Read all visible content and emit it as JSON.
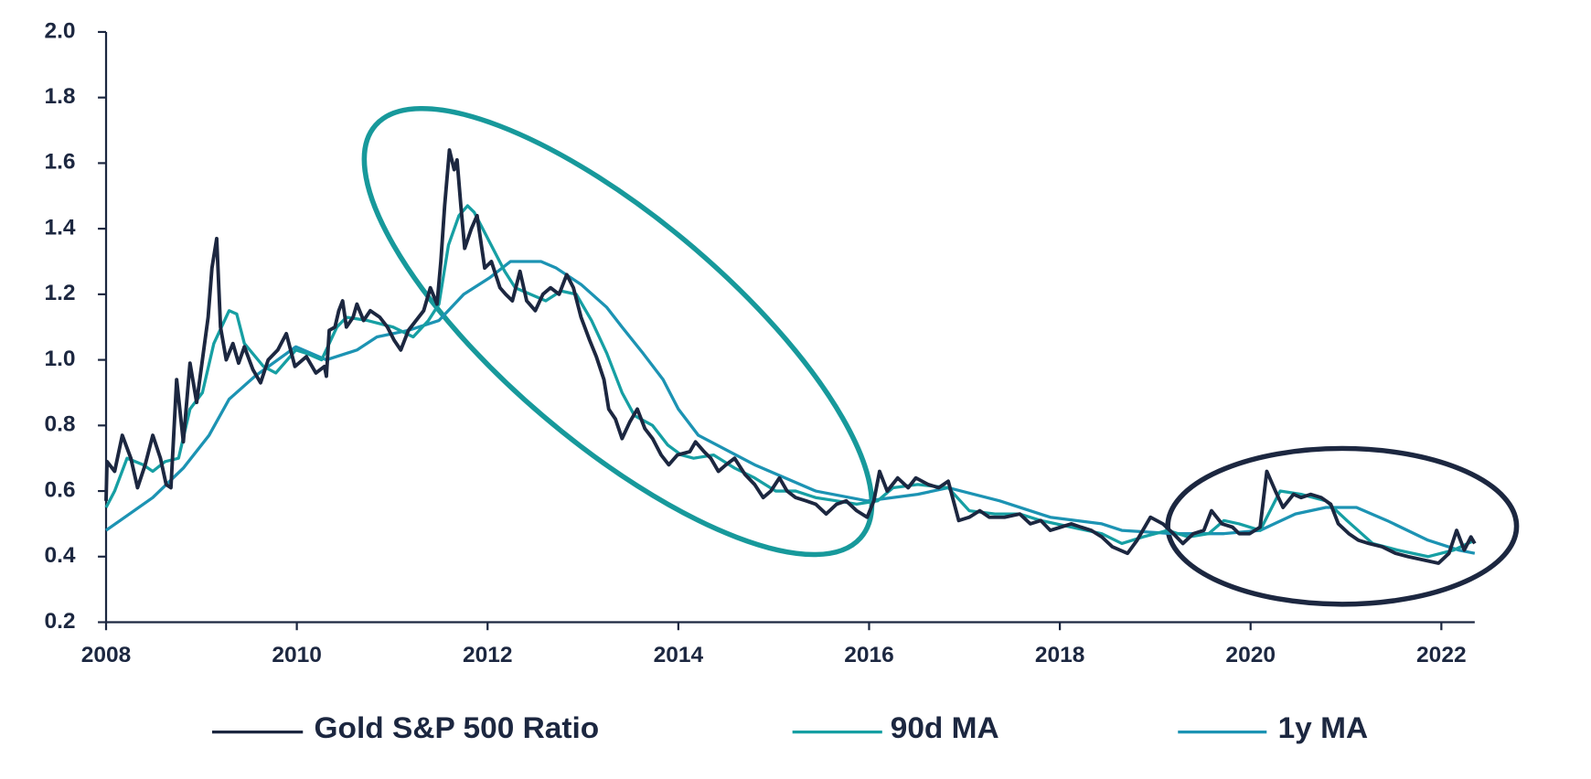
{
  "chart_data": {
    "type": "line",
    "xlim": [
      2008,
      2022.35
    ],
    "xticks": [
      2008,
      2010,
      2012,
      2014,
      2016,
      2018,
      2020,
      2022
    ],
    "ylim": [
      0.2,
      2.0
    ],
    "yticks": [
      0.2,
      0.4,
      0.6,
      0.8,
      {
        "value": 1,
        "label": "1.0"
      },
      1.2,
      1.4,
      1.6,
      1.8,
      {
        "value": 2,
        "label": "2.0"
      }
    ],
    "grid": false,
    "legend": "bottom",
    "series": [
      {
        "name": "Gold S&P 500 Ratio",
        "color": "#1c2740",
        "x": [
          2008,
          2008.01,
          2008.09,
          2008.17,
          2008.26,
          2008.33,
          2008.41,
          2008.49,
          2008.57,
          2008.63,
          2008.68,
          2008.74,
          2008.81,
          2008.88,
          2008.95,
          2009.01,
          2009.07,
          2009.11,
          2009.16,
          2009.2,
          2009.26,
          2009.33,
          2009.39,
          2009.45,
          2009.54,
          2009.62,
          2009.7,
          2009.8,
          2009.89,
          2009.98,
          2010.1,
          2010.2,
          2010.29,
          2010.31,
          2010.34,
          2010.4,
          2010.44,
          2010.48,
          2010.52,
          2010.59,
          2010.63,
          2010.7,
          2010.77,
          2010.87,
          2010.95,
          2011.02,
          2011.09,
          2011.17,
          2011.25,
          2011.33,
          2011.4,
          2011.47,
          2011.51,
          2011.55,
          2011.6,
          2011.65,
          2011.68,
          2011.72,
          2011.76,
          2011.83,
          2011.89,
          2011.97,
          2012.04,
          2012.13,
          2012.19,
          2012.26,
          2012.34,
          2012.41,
          2012.5,
          2012.58,
          2012.66,
          2012.75,
          2012.83,
          2012.9,
          2012.98,
          2013.07,
          2013.14,
          2013.22,
          2013.27,
          2013.34,
          2013.41,
          2013.49,
          2013.57,
          2013.65,
          2013.73,
          2013.82,
          2013.9,
          2013.99,
          2014.12,
          2014.18,
          2014.27,
          2014.34,
          2014.42,
          2014.5,
          2014.59,
          2014.7,
          2014.8,
          2014.89,
          2014.97,
          2015.06,
          2015.14,
          2015.23,
          2015.34,
          2015.44,
          2015.55,
          2015.66,
          2015.76,
          2015.87,
          2015.98,
          2016.05,
          2016.11,
          2016.19,
          2016.3,
          2016.41,
          2016.49,
          2016.62,
          2016.73,
          2016.83,
          2016.94,
          2017.05,
          2017.16,
          2017.26,
          2017.42,
          2017.58,
          2017.69,
          2017.8,
          2017.9,
          2018.01,
          2018.12,
          2018.22,
          2018.33,
          2018.44,
          2018.55,
          2018.71,
          2018.81,
          2018.95,
          2019.08,
          2019.19,
          2019.29,
          2019.4,
          2019.51,
          2019.59,
          2019.7,
          2019.81,
          2019.88,
          2019.99,
          2020.1,
          2020.17,
          2020.26,
          2020.34,
          2020.45,
          2020.53,
          2020.63,
          2020.74,
          2020.84,
          2020.92,
          2021.03,
          2021.13,
          2021.24,
          2021.38,
          2021.52,
          2021.65,
          2021.81,
          2021.97,
          2022.08,
          2022.16,
          2022.24,
          2022.31,
          2022.35
        ],
        "values": [
          0.57,
          0.69,
          0.66,
          0.77,
          0.7,
          0.61,
          0.68,
          0.77,
          0.7,
          0.62,
          0.61,
          0.94,
          0.75,
          0.99,
          0.87,
          1.0,
          1.13,
          1.28,
          1.37,
          1.1,
          1.0,
          1.05,
          0.99,
          1.04,
          0.97,
          0.93,
          1.0,
          1.03,
          1.08,
          0.98,
          1.01,
          0.96,
          0.98,
          0.95,
          1.09,
          1.1,
          1.15,
          1.18,
          1.1,
          1.13,
          1.17,
          1.12,
          1.15,
          1.13,
          1.1,
          1.06,
          1.03,
          1.09,
          1.12,
          1.15,
          1.22,
          1.17,
          1.3,
          1.47,
          1.64,
          1.58,
          1.61,
          1.47,
          1.34,
          1.4,
          1.44,
          1.28,
          1.3,
          1.22,
          1.2,
          1.18,
          1.27,
          1.18,
          1.15,
          1.2,
          1.22,
          1.2,
          1.26,
          1.22,
          1.13,
          1.06,
          1.01,
          0.94,
          0.85,
          0.82,
          0.76,
          0.81,
          0.85,
          0.79,
          0.76,
          0.71,
          0.68,
          0.71,
          0.72,
          0.75,
          0.72,
          0.7,
          0.66,
          0.68,
          0.7,
          0.65,
          0.62,
          0.58,
          0.6,
          0.64,
          0.6,
          0.58,
          0.57,
          0.56,
          0.53,
          0.56,
          0.57,
          0.54,
          0.52,
          0.57,
          0.66,
          0.6,
          0.64,
          0.61,
          0.64,
          0.62,
          0.61,
          0.63,
          0.51,
          0.52,
          0.54,
          0.52,
          0.52,
          0.53,
          0.5,
          0.51,
          0.48,
          0.49,
          0.5,
          0.49,
          0.48,
          0.46,
          0.43,
          0.41,
          0.45,
          0.52,
          0.5,
          0.47,
          0.44,
          0.47,
          0.48,
          0.54,
          0.5,
          0.49,
          0.47,
          0.47,
          0.49,
          0.66,
          0.6,
          0.55,
          0.59,
          0.58,
          0.59,
          0.58,
          0.56,
          0.5,
          0.47,
          0.45,
          0.44,
          0.43,
          0.41,
          0.4,
          0.39,
          0.38,
          0.41,
          0.48,
          0.42,
          0.46,
          0.44
        ]
      },
      {
        "name": "90d MA",
        "color": "#169fa3",
        "x": [
          2008,
          2008.09,
          2008.22,
          2008.39,
          2008.49,
          2008.62,
          2008.76,
          2008.88,
          2009.01,
          2009.13,
          2009.29,
          2009.37,
          2009.45,
          2009.65,
          2009.78,
          2009.99,
          2010.1,
          2010.26,
          2010.42,
          2010.52,
          2010.74,
          2011.01,
          2011.22,
          2011.38,
          2011.49,
          2011.59,
          2011.7,
          2011.79,
          2011.86,
          2012.02,
          2012.18,
          2012.29,
          2012.45,
          2012.61,
          2012.77,
          2012.93,
          2013.09,
          2013.25,
          2013.41,
          2013.54,
          2013.73,
          2013.89,
          2014.03,
          2014.16,
          2014.37,
          2014.59,
          2014.8,
          2015.02,
          2015.23,
          2015.44,
          2015.66,
          2015.87,
          2016.09,
          2016.25,
          2016.51,
          2016.83,
          2017.05,
          2017.32,
          2017.58,
          2017.8,
          2018.12,
          2018.44,
          2018.65,
          2018.87,
          2019.13,
          2019.35,
          2019.56,
          2019.72,
          2019.88,
          2020.1,
          2020.31,
          2020.53,
          2020.79,
          2021.01,
          2021.28,
          2021.54,
          2021.86,
          2022.13,
          2022.35
        ],
        "values": [
          0.55,
          0.6,
          0.7,
          0.68,
          0.66,
          0.69,
          0.7,
          0.85,
          0.9,
          1.05,
          1.15,
          1.14,
          1.05,
          0.98,
          0.96,
          1.03,
          1.02,
          1.0,
          1.1,
          1.13,
          1.12,
          1.1,
          1.07,
          1.12,
          1.17,
          1.35,
          1.44,
          1.47,
          1.45,
          1.36,
          1.27,
          1.22,
          1.2,
          1.18,
          1.21,
          1.2,
          1.12,
          1.02,
          0.9,
          0.83,
          0.8,
          0.74,
          0.71,
          0.7,
          0.71,
          0.67,
          0.64,
          0.6,
          0.6,
          0.58,
          0.57,
          0.56,
          0.57,
          0.61,
          0.62,
          0.61,
          0.54,
          0.53,
          0.53,
          0.51,
          0.49,
          0.47,
          0.44,
          0.46,
          0.48,
          0.46,
          0.47,
          0.51,
          0.5,
          0.48,
          0.6,
          0.59,
          0.57,
          0.51,
          0.44,
          0.42,
          0.4,
          0.42,
          0.45
        ]
      },
      {
        "name": "1y MA",
        "color": "#1c93b3",
        "x": [
          2008,
          2008.49,
          2008.81,
          2009.08,
          2009.29,
          2009.56,
          2009.99,
          2010.31,
          2010.63,
          2010.84,
          2011.17,
          2011.49,
          2011.75,
          2012.02,
          2012.24,
          2012.56,
          2012.72,
          2012.98,
          2013.25,
          2013.41,
          2013.63,
          2013.84,
          2014.0,
          2014.21,
          2014.8,
          2015.44,
          2015.98,
          2016.51,
          2016.83,
          2017.37,
          2017.9,
          2018.44,
          2018.65,
          2019.19,
          2019.72,
          2020.1,
          2020.47,
          2020.79,
          2021.11,
          2021.43,
          2021.86,
          2022.18,
          2022.35
        ],
        "values": [
          0.48,
          0.58,
          0.67,
          0.77,
          0.88,
          0.95,
          1.04,
          1.0,
          1.03,
          1.07,
          1.09,
          1.12,
          1.2,
          1.25,
          1.3,
          1.3,
          1.28,
          1.23,
          1.16,
          1.1,
          1.02,
          0.94,
          0.85,
          0.77,
          0.68,
          0.6,
          0.57,
          0.59,
          0.61,
          0.57,
          0.52,
          0.5,
          0.48,
          0.47,
          0.47,
          0.48,
          0.53,
          0.55,
          0.55,
          0.51,
          0.45,
          0.42,
          0.41
        ]
      }
    ]
  }
}
